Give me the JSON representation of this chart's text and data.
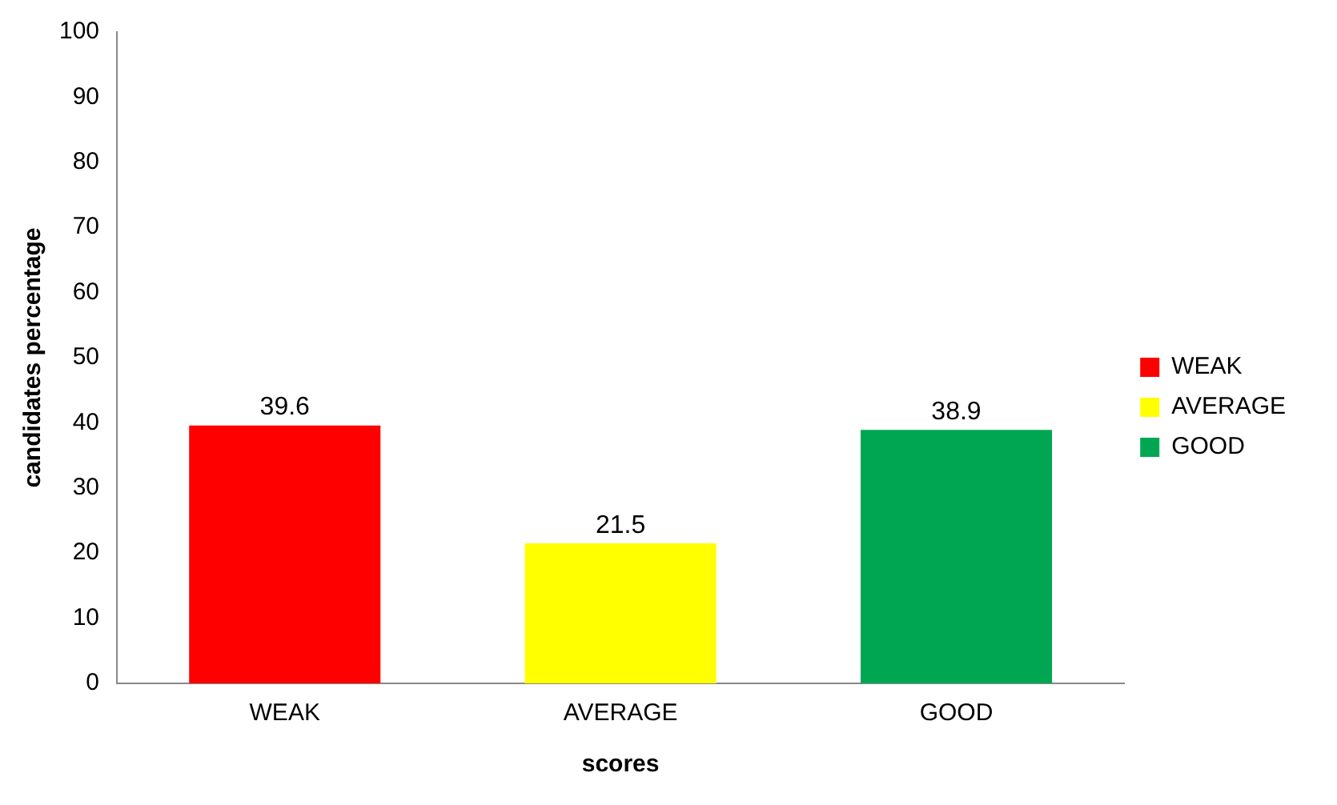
{
  "chart_data": {
    "type": "bar",
    "xlabel": "scores",
    "ylabel": "candidates percentage",
    "categories": [
      "WEAK",
      "AVERAGE",
      "GOOD"
    ],
    "series": [
      {
        "name": "WEAK",
        "color": "#ff0000",
        "values": [
          39.6,
          null,
          null
        ]
      },
      {
        "name": "AVERAGE",
        "color": "#ffff00",
        "values": [
          null,
          21.5,
          null
        ]
      },
      {
        "name": "GOOD",
        "color": "#00a651",
        "values": [
          null,
          null,
          38.9
        ]
      }
    ],
    "ylim": [
      0,
      100
    ],
    "yticks": [
      0,
      10,
      20,
      30,
      40,
      50,
      60,
      70,
      80,
      90,
      100
    ],
    "grid": false,
    "legend": "right",
    "data_labels": true
  }
}
